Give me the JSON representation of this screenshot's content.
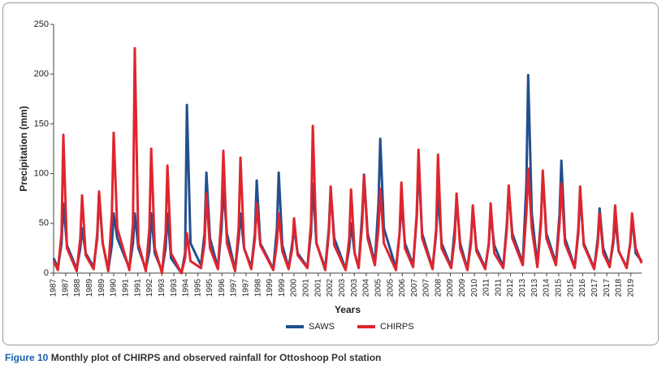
{
  "chart_data": {
    "type": "line",
    "y_label": "Precipitation (mm)",
    "x_label": "Years",
    "xlim": [
      1987,
      2019.6
    ],
    "ylim": [
      0,
      250
    ],
    "yticks": [
      0,
      50,
      100,
      150,
      200,
      250
    ],
    "grid": false,
    "legend": "bottom",
    "xticks": [
      1987,
      {
        "value": 1987.67,
        "label": "1987"
      },
      {
        "value": 1988.33,
        "label": "1988"
      },
      1989,
      {
        "value": 1989.67,
        "label": "1989"
      },
      {
        "value": 1990.33,
        "label": "1990"
      },
      1991,
      {
        "value": 1991.67,
        "label": "1991"
      },
      {
        "value": 1992.33,
        "label": "1992"
      },
      1993,
      {
        "value": 1993.67,
        "label": "1993"
      },
      {
        "value": 1994.33,
        "label": "1994"
      },
      1995,
      {
        "value": 1995.67,
        "label": "1995"
      },
      {
        "value": 1996.33,
        "label": "1996"
      },
      1997,
      {
        "value": 1997.67,
        "label": "1997"
      },
      {
        "value": 1998.33,
        "label": "1998"
      },
      1999,
      {
        "value": 1999.67,
        "label": "1999"
      },
      {
        "value": 2000.33,
        "label": "2000"
      },
      2001,
      {
        "value": 2001.67,
        "label": "2001"
      },
      {
        "value": 2002.33,
        "label": "2002"
      },
      2003,
      {
        "value": 2003.67,
        "label": "2003"
      },
      {
        "value": 2004.33,
        "label": "2004"
      },
      2005,
      {
        "value": 2005.67,
        "label": "2005"
      },
      {
        "value": 2006.33,
        "label": "2006"
      },
      2007,
      {
        "value": 2007.67,
        "label": "2007"
      },
      {
        "value": 2008.33,
        "label": "2008"
      },
      2009,
      {
        "value": 2009.67,
        "label": "2009"
      },
      {
        "value": 2010.33,
        "label": "2010"
      },
      2011,
      {
        "value": 2011.67,
        "label": "2011"
      },
      {
        "value": 2012.33,
        "label": "2012"
      },
      2013,
      {
        "value": 2013.67,
        "label": "2013"
      },
      {
        "value": 2014.33,
        "label": "2014"
      },
      2015,
      {
        "value": 2015.67,
        "label": "2015"
      },
      {
        "value": 2016.33,
        "label": "2016"
      },
      2017,
      {
        "value": 2017.67,
        "label": "2017"
      },
      {
        "value": 2018.33,
        "label": "2018"
      },
      2019
    ],
    "x": [
      1987.0,
      1987.24,
      1987.44,
      1987.54,
      1987.74,
      1988.28,
      1988.48,
      1988.58,
      1988.78,
      1989.22,
      1989.42,
      1989.52,
      1989.72,
      1990.03,
      1990.23,
      1990.33,
      1990.53,
      1991.2,
      1991.4,
      1991.5,
      1991.7,
      1992.11,
      1992.31,
      1992.41,
      1992.61,
      1993.01,
      1993.21,
      1993.31,
      1993.51,
      1994.09,
      1994.29,
      1994.39,
      1994.59,
      1995.17,
      1995.37,
      1995.47,
      1995.67,
      1996.11,
      1996.31,
      1996.41,
      1996.61,
      1997.06,
      1997.26,
      1997.36,
      1997.56,
      1997.96,
      1998.16,
      1998.26,
      1998.46,
      1999.18,
      1999.38,
      1999.48,
      1999.68,
      2000.03,
      2000.23,
      2000.33,
      2000.53,
      2001.07,
      2001.27,
      2001.37,
      2001.57,
      2002.06,
      2002.26,
      2002.36,
      2002.56,
      2003.19,
      2003.39,
      2003.49,
      2003.69,
      2003.91,
      2004.11,
      2004.21,
      2004.41,
      2004.81,
      2005.01,
      2005.11,
      2005.31,
      2005.98,
      2006.18,
      2006.28,
      2006.48,
      2006.93,
      2007.13,
      2007.23,
      2007.43,
      2008.01,
      2008.21,
      2008.31,
      2008.51,
      2009.04,
      2009.24,
      2009.34,
      2009.54,
      2009.94,
      2010.14,
      2010.24,
      2010.44,
      2010.93,
      2011.13,
      2011.23,
      2011.43,
      2011.93,
      2012.13,
      2012.23,
      2012.43,
      2013.01,
      2013.21,
      2013.31,
      2013.51,
      2013.82,
      2014.02,
      2014.12,
      2014.32,
      2014.85,
      2015.05,
      2015.15,
      2015.35,
      2015.89,
      2016.09,
      2016.19,
      2016.39,
      2016.97,
      2017.17,
      2017.27,
      2017.47,
      2017.83,
      2018.03,
      2018.13,
      2018.33,
      2018.77,
      2018.97,
      2019.07,
      2019.27,
      2019.6
    ],
    "series": [
      {
        "name": "SAWS",
        "color": "#234f8e",
        "values": [
          15,
          5,
          30,
          70,
          28,
          4,
          25,
          45,
          20,
          6,
          35,
          80,
          30,
          3,
          28,
          60,
          35,
          5,
          30,
          60,
          25,
          4,
          22,
          60,
          20,
          2,
          25,
          60,
          15,
          0,
          20,
          169,
          30,
          8,
          40,
          101,
          35,
          5,
          45,
          85,
          40,
          3,
          35,
          60,
          25,
          6,
          40,
          93,
          30,
          4,
          45,
          101,
          28,
          5,
          30,
          45,
          20,
          6,
          40,
          90,
          30,
          5,
          45,
          85,
          35,
          4,
          25,
          50,
          20,
          6,
          60,
          99,
          40,
          10,
          70,
          135,
          45,
          5,
          40,
          70,
          30,
          8,
          55,
          110,
          40,
          5,
          40,
          80,
          30,
          6,
          45,
          75,
          30,
          4,
          35,
          65,
          25,
          5,
          30,
          60,
          28,
          6,
          50,
          85,
          40,
          10,
          90,
          199,
          60,
          8,
          55,
          100,
          40,
          10,
          60,
          113,
          35,
          6,
          40,
          80,
          30,
          5,
          35,
          65,
          25,
          8,
          30,
          55,
          22,
          6,
          30,
          57,
          20,
          12
        ]
      },
      {
        "name": "CHIRPS",
        "color": "#e0252e",
        "values": [
          12,
          3,
          40,
          139,
          25,
          2,
          35,
          78,
          18,
          4,
          40,
          82,
          30,
          2,
          60,
          141,
          45,
          3,
          50,
          226,
          30,
          2,
          45,
          125,
          25,
          0,
          40,
          108,
          20,
          0,
          15,
          40,
          12,
          5,
          30,
          80,
          25,
          4,
          60,
          123,
          30,
          2,
          45,
          116,
          25,
          4,
          35,
          70,
          28,
          3,
          30,
          60,
          22,
          4,
          25,
          55,
          18,
          5,
          50,
          148,
          30,
          3,
          40,
          87,
          28,
          3,
          35,
          84,
          20,
          5,
          50,
          98,
          35,
          8,
          45,
          85,
          30,
          3,
          40,
          91,
          25,
          6,
          60,
          124,
          35,
          4,
          45,
          119,
          25,
          5,
          35,
          80,
          25,
          3,
          30,
          68,
          22,
          4,
          30,
          70,
          20,
          5,
          45,
          88,
          35,
          8,
          60,
          105,
          45,
          6,
          50,
          103,
          35,
          8,
          50,
          90,
          30,
          5,
          45,
          87,
          28,
          4,
          30,
          60,
          20,
          6,
          35,
          68,
          22,
          5,
          30,
          60,
          25,
          10
        ]
      }
    ]
  },
  "caption": {
    "label": "Figure 10",
    "text": "Monthly plot of CHIRPS and observed rainfall for Ottoshoop Pol station"
  }
}
